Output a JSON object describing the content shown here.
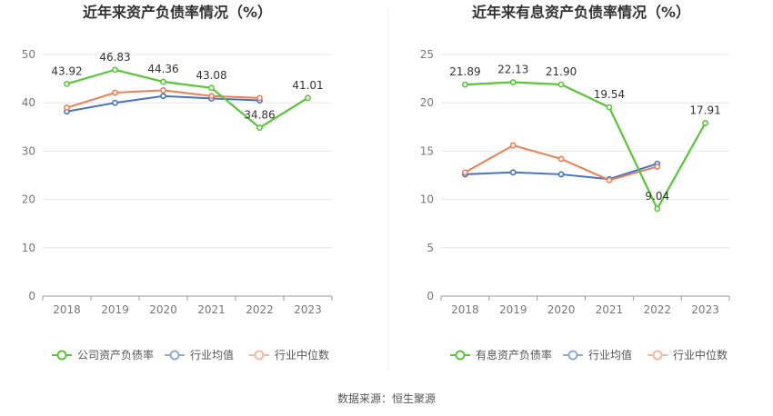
{
  "footer": {
    "source": "数据来源：恒生聚源"
  },
  "chart_data": [
    {
      "type": "line",
      "title": "近年来资产负债率情况（%）",
      "categories": [
        "2018",
        "2019",
        "2020",
        "2021",
        "2022",
        "2023"
      ],
      "ylim": [
        0,
        50
      ],
      "yticks": [
        0,
        10,
        20,
        30,
        40,
        50
      ],
      "grid": true,
      "legend_position": "bottom",
      "series": [
        {
          "name": "公司资产负债率",
          "color": "#5ac43b",
          "values": [
            43.92,
            46.83,
            44.36,
            43.08,
            34.86,
            41.01
          ],
          "labels": [
            "43.92",
            "46.83",
            "44.36",
            "43.08",
            "34.86",
            "41.01"
          ]
        },
        {
          "name": "行业均值",
          "color": "#4472c4",
          "values": [
            38.2,
            40.0,
            41.4,
            40.9,
            40.5,
            null
          ]
        },
        {
          "name": "行业中位数",
          "color": "#ed7d55",
          "values": [
            39.0,
            42.1,
            42.6,
            41.4,
            41.0,
            null
          ]
        }
      ]
    },
    {
      "type": "line",
      "title": "近年来有息资产负债率情况（%）",
      "categories": [
        "2018",
        "2019",
        "2020",
        "2021",
        "2022",
        "2023"
      ],
      "ylim": [
        0,
        25
      ],
      "yticks": [
        0,
        5,
        10,
        15,
        20,
        25
      ],
      "grid": true,
      "legend_position": "bottom",
      "series": [
        {
          "name": "有息资产负债率",
          "color": "#5ac43b",
          "values": [
            21.89,
            22.13,
            21.9,
            19.54,
            9.04,
            17.91
          ],
          "labels": [
            "21.89",
            "22.13",
            "21.90",
            "19.54",
            "9.04",
            "17.91"
          ]
        },
        {
          "name": "行业均值",
          "color": "#4472c4",
          "values": [
            12.6,
            12.8,
            12.6,
            12.1,
            13.7,
            null
          ]
        },
        {
          "name": "行业中位数",
          "color": "#ed7d55",
          "values": [
            12.8,
            15.6,
            14.2,
            12.0,
            13.4,
            null
          ]
        }
      ]
    }
  ]
}
